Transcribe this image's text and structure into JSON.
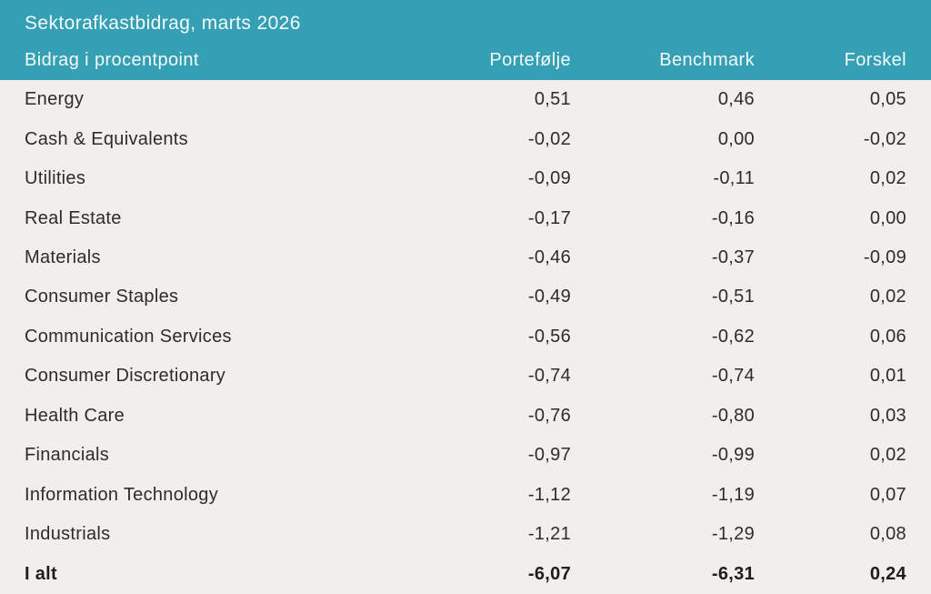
{
  "colors": {
    "accent_teal": "#359fb4",
    "body_bg": "#f0efed",
    "body_text": "#2d2c2a",
    "header_text": "#f2fafb"
  },
  "chart_data": {
    "type": "table",
    "title": "Sektorafkastbidrag, marts 2026",
    "columns": [
      "Bidrag i procentpoint",
      "Portefølje",
      "Benchmark",
      "Forskel"
    ],
    "rows": [
      [
        "Energy",
        "0,51",
        "0,46",
        "0,05"
      ],
      [
        "Cash & Equivalents",
        "-0,02",
        "0,00",
        "-0,02"
      ],
      [
        "Utilities",
        "-0,09",
        "-0,11",
        "0,02"
      ],
      [
        "Real Estate",
        "-0,17",
        "-0,16",
        "0,00"
      ],
      [
        "Materials",
        "-0,46",
        "-0,37",
        "-0,09"
      ],
      [
        "Consumer Staples",
        "-0,49",
        "-0,51",
        "0,02"
      ],
      [
        "Communication Services",
        "-0,56",
        "-0,62",
        "0,06"
      ],
      [
        "Consumer Discretionary",
        "-0,74",
        "-0,74",
        "0,01"
      ],
      [
        "Health Care",
        "-0,76",
        "-0,80",
        "0,03"
      ],
      [
        "Financials",
        "-0,97",
        "-0,99",
        "0,02"
      ],
      [
        "Information Technology",
        "-1,12",
        "-1,19",
        "0,07"
      ],
      [
        "Industrials",
        "-1,21",
        "-1,29",
        "0,08"
      ]
    ],
    "total_row": [
      "I alt",
      "-6,07",
      "-6,31",
      "0,24"
    ],
    "layout": {
      "decimal_separator": ",",
      "value_alignment": "right",
      "total_row_bold": true
    }
  }
}
